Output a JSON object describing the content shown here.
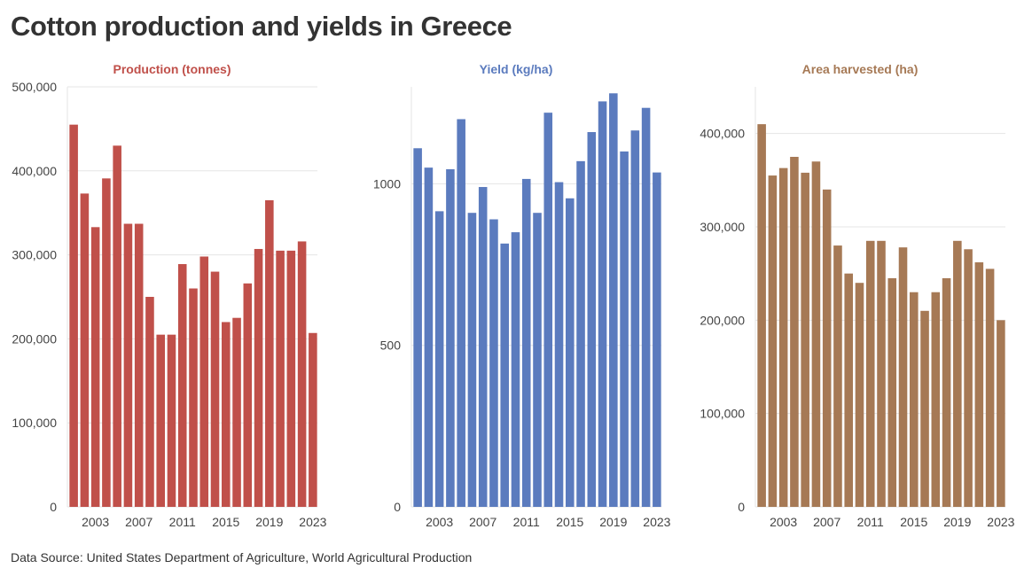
{
  "title": "Cotton production and yields in Greece",
  "source": "Data Source: United States Department of Agriculture, World Agricultural Production",
  "chart_data": [
    {
      "type": "bar",
      "title": "Production (tonnes)",
      "color": "#c0504a",
      "x": [
        2001,
        2002,
        2003,
        2004,
        2005,
        2006,
        2007,
        2008,
        2009,
        2010,
        2011,
        2012,
        2013,
        2014,
        2015,
        2016,
        2017,
        2018,
        2019,
        2020,
        2021,
        2022,
        2023
      ],
      "values": [
        455000,
        373000,
        333000,
        391000,
        430000,
        337000,
        337000,
        250000,
        205000,
        205000,
        289000,
        260000,
        298000,
        280000,
        220000,
        225000,
        266000,
        307000,
        365000,
        305000,
        305000,
        316000,
        207000
      ],
      "xticks": [
        "2003",
        "2007",
        "2011",
        "2015",
        "2019",
        "2023"
      ],
      "yticks": [
        0,
        100000,
        200000,
        300000,
        400000,
        500000
      ],
      "ytick_labels": [
        "0",
        "100,000",
        "200,000",
        "300,000",
        "400,000",
        "500,000"
      ],
      "ylim": [
        0,
        500000
      ],
      "grid": true
    },
    {
      "type": "bar",
      "title": "Yield (kg/ha)",
      "color": "#5b7bbe",
      "x": [
        2001,
        2002,
        2003,
        2004,
        2005,
        2006,
        2007,
        2008,
        2009,
        2010,
        2011,
        2012,
        2013,
        2014,
        2015,
        2016,
        2017,
        2018,
        2019,
        2020,
        2021,
        2022,
        2023
      ],
      "values": [
        1110,
        1050,
        915,
        1045,
        1200,
        910,
        990,
        890,
        815,
        850,
        1015,
        910,
        1220,
        1005,
        955,
        1070,
        1160,
        1255,
        1280,
        1100,
        1165,
        1235,
        1035
      ],
      "xticks": [
        "2003",
        "2007",
        "2011",
        "2015",
        "2019",
        "2023"
      ],
      "yticks": [
        0,
        500,
        1000
      ],
      "ytick_labels": [
        "0",
        "500",
        "1000"
      ],
      "ylim": [
        0,
        1300
      ],
      "grid": true
    },
    {
      "type": "bar",
      "title": "Area harvested (ha)",
      "color": "#a67955",
      "x": [
        2001,
        2002,
        2003,
        2004,
        2005,
        2006,
        2007,
        2008,
        2009,
        2010,
        2011,
        2012,
        2013,
        2014,
        2015,
        2016,
        2017,
        2018,
        2019,
        2020,
        2021,
        2022,
        2023
      ],
      "values": [
        410000,
        355000,
        363000,
        375000,
        358000,
        370000,
        340000,
        280000,
        250000,
        240000,
        285000,
        285000,
        245000,
        278000,
        230000,
        210000,
        230000,
        245000,
        285000,
        276000,
        262000,
        255000,
        200000
      ],
      "xticks": [
        "2003",
        "2007",
        "2011",
        "2015",
        "2019",
        "2023"
      ],
      "yticks": [
        0,
        100000,
        200000,
        300000,
        400000
      ],
      "ytick_labels": [
        "0",
        "100,000",
        "200,000",
        "300,000",
        "400,000"
      ],
      "ylim": [
        0,
        450000
      ],
      "grid": true
    }
  ]
}
